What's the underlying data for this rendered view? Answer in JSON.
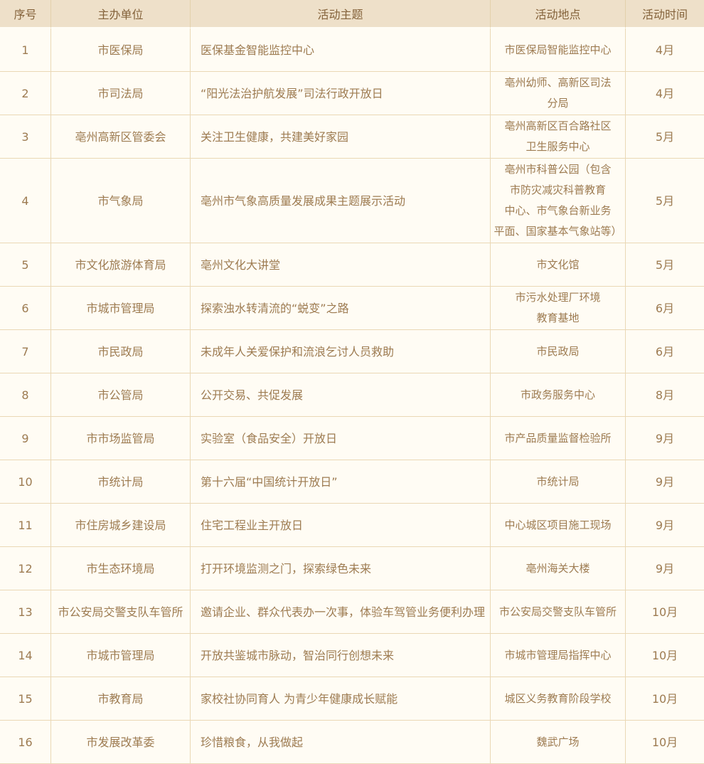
{
  "table": {
    "columns": [
      "序号",
      "主办单位",
      "活动主题",
      "活动地点",
      "活动时间"
    ],
    "rows": [
      {
        "no": "1",
        "organizer": "市医保局",
        "theme": "医保基金智能监控中心",
        "location": "市医保局智能监控中心",
        "time": "4月"
      },
      {
        "no": "2",
        "organizer": "市司法局",
        "theme": "“阳光法治护航发展”司法行政开放日",
        "location": "亳州幼师、高新区司法\n分局",
        "time": "4月"
      },
      {
        "no": "3",
        "organizer": "亳州高新区管委会",
        "theme": "关注卫生健康，共建美好家园",
        "location": "亳州高新区百合路社区\n卫生服务中心",
        "time": "5月"
      },
      {
        "no": "4",
        "organizer": "市气象局",
        "theme": "亳州市气象高质量发展成果主题展示活动",
        "location": "亳州市科普公园（包含\n市防灾减灾科普教育\n中心、市气象台新业务\n平面、国家基本气象站等）",
        "time": "5月"
      },
      {
        "no": "5",
        "organizer": "市文化旅游体育局",
        "theme": "亳州文化大讲堂",
        "location": "市文化馆",
        "time": "5月"
      },
      {
        "no": "6",
        "organizer": "市城市管理局",
        "theme": "探索浊水转清流的“蜕变”之路",
        "location": "市污水处理厂环境\n教育基地",
        "time": "6月"
      },
      {
        "no": "7",
        "organizer": "市民政局",
        "theme": "未成年人关爱保护和流浪乞讨人员救助",
        "location": "市民政局",
        "time": "6月"
      },
      {
        "no": "8",
        "organizer": "市公管局",
        "theme": "公开交易、共促发展",
        "location": "市政务服务中心",
        "time": "8月"
      },
      {
        "no": "9",
        "organizer": "市市场监管局",
        "theme": "实验室（食品安全）开放日",
        "location": "市产品质量监督检验所",
        "time": "9月"
      },
      {
        "no": "10",
        "organizer": "市统计局",
        "theme": "第十六届“中国统计开放日”",
        "location": "市统计局",
        "time": "9月"
      },
      {
        "no": "11",
        "organizer": "市住房城乡建设局",
        "theme": "住宅工程业主开放日",
        "location": "中心城区项目施工现场",
        "time": "9月"
      },
      {
        "no": "12",
        "organizer": "市生态环境局",
        "theme": "打开环境监测之门，探索绿色未来",
        "location": "亳州海关大楼",
        "time": "9月"
      },
      {
        "no": "13",
        "organizer": "市公安局交警支队车管所",
        "theme": "邀请企业、群众代表办一次事，体验车驾管业务便利办理",
        "location": "市公安局交警支队车管所",
        "time": "10月"
      },
      {
        "no": "14",
        "organizer": "市城市管理局",
        "theme": "开放共鉴城市脉动，智治同行创想未来",
        "location": "市城市管理局指挥中心",
        "time": "10月"
      },
      {
        "no": "15",
        "organizer": "市教育局",
        "theme": "家校社协同育人 为青少年健康成长赋能",
        "location": "城区义务教育阶段学校",
        "time": "10月"
      },
      {
        "no": "16",
        "organizer": "市发展改革委",
        "theme": "珍惜粮食，从我做起",
        "location": "魏武广场",
        "time": "10月"
      }
    ]
  },
  "colors": {
    "header_bg": "#eee0c9",
    "body_bg": "#fffcf4",
    "border": "#ead8b5",
    "header_divider": "#e3d1ab",
    "header_bottom_divider": "#fffdf5",
    "header_text": "#84623a",
    "body_text": "#9d7b51"
  }
}
